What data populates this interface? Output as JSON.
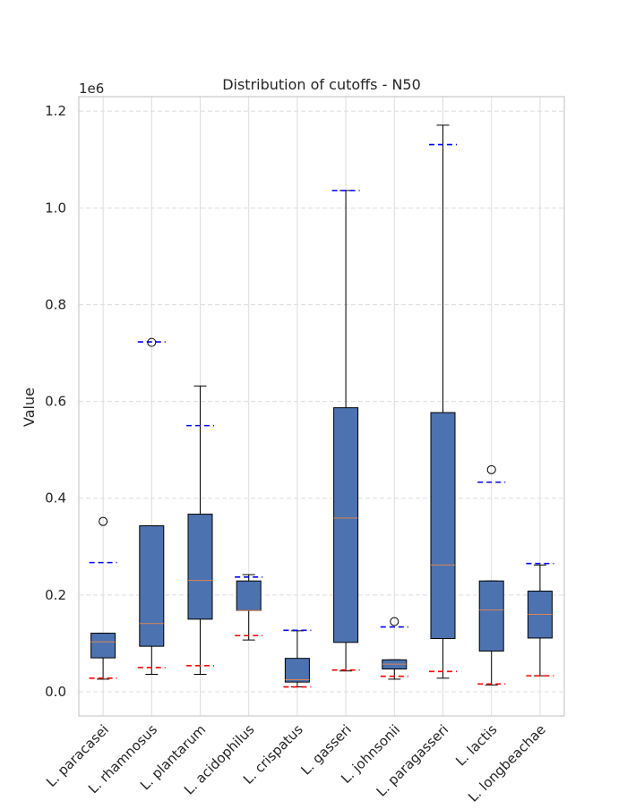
{
  "chart_data": {
    "type": "box",
    "title": "Distribution of cutoffs - N50",
    "xlabel": "",
    "ylabel": "Value",
    "y_multiplier_label": "1e6",
    "ylim": [
      -0.05,
      1.23
    ],
    "yticks": [
      0.0,
      0.2,
      0.4,
      0.6,
      0.8,
      1.0,
      1.2
    ],
    "ytick_labels": [
      "0.0",
      "0.2",
      "0.4",
      "0.6",
      "0.8",
      "1.0",
      "1.2"
    ],
    "y_unit_multiplier": 1000000,
    "grid": true,
    "categories": [
      "L. paracasei",
      "L. rhamnosus",
      "L. plantarum",
      "L. acidophilus",
      "L. crispatus",
      "L. gasseri",
      "L. johnsonii",
      "L. paragasseri",
      "L. lactis",
      "L. longbeachae"
    ],
    "boxes": [
      {
        "whisker_low": 0.026,
        "q1": 0.07,
        "median": 0.103,
        "q3": 0.121,
        "whisker_high": 0.121,
        "outliers": [
          0.352
        ],
        "lower_cutoff": 0.028,
        "upper_cutoff": 0.267
      },
      {
        "whisker_low": 0.036,
        "q1": 0.094,
        "median": 0.141,
        "q3": 0.343,
        "whisker_high": 0.343,
        "outliers": [
          0.722
        ],
        "lower_cutoff": 0.05,
        "upper_cutoff": 0.723
      },
      {
        "whisker_low": 0.036,
        "q1": 0.15,
        "median": 0.23,
        "q3": 0.367,
        "whisker_high": 0.632,
        "outliers": [],
        "lower_cutoff": 0.054,
        "upper_cutoff": 0.55
      },
      {
        "whisker_low": 0.107,
        "q1": 0.168,
        "median": 0.168,
        "q3": 0.229,
        "whisker_high": 0.242,
        "outliers": [],
        "lower_cutoff": 0.116,
        "upper_cutoff": 0.237
      },
      {
        "whisker_low": 0.01,
        "q1": 0.02,
        "median": 0.025,
        "q3": 0.069,
        "whisker_high": 0.126,
        "outliers": [],
        "lower_cutoff": 0.01,
        "upper_cutoff": 0.127
      },
      {
        "whisker_low": 0.043,
        "q1": 0.102,
        "median": 0.359,
        "q3": 0.587,
        "whisker_high": 1.036,
        "outliers": [],
        "lower_cutoff": 0.045,
        "upper_cutoff": 1.036
      },
      {
        "whisker_low": 0.026,
        "q1": 0.047,
        "median": 0.057,
        "q3": 0.066,
        "whisker_high": 0.066,
        "outliers": [
          0.145
        ],
        "lower_cutoff": 0.032,
        "upper_cutoff": 0.134
      },
      {
        "whisker_low": 0.028,
        "q1": 0.11,
        "median": 0.262,
        "q3": 0.577,
        "whisker_high": 1.171,
        "outliers": [],
        "lower_cutoff": 0.042,
        "upper_cutoff": 1.131
      },
      {
        "whisker_low": 0.014,
        "q1": 0.084,
        "median": 0.169,
        "q3": 0.229,
        "whisker_high": 0.229,
        "outliers": [
          0.459
        ],
        "lower_cutoff": 0.016,
        "upper_cutoff": 0.433
      },
      {
        "whisker_low": 0.033,
        "q1": 0.111,
        "median": 0.16,
        "q3": 0.208,
        "whisker_high": 0.262,
        "outliers": [],
        "lower_cutoff": 0.033,
        "upper_cutoff": 0.265
      }
    ],
    "colors": {
      "box_fill": "#4c72b0",
      "box_edge": "#000000",
      "median": "#dd8452",
      "upper_cutoff": "#0000ff",
      "lower_cutoff": "#ff0000",
      "grid": "#dddddd",
      "spine": "#cccccc"
    }
  }
}
